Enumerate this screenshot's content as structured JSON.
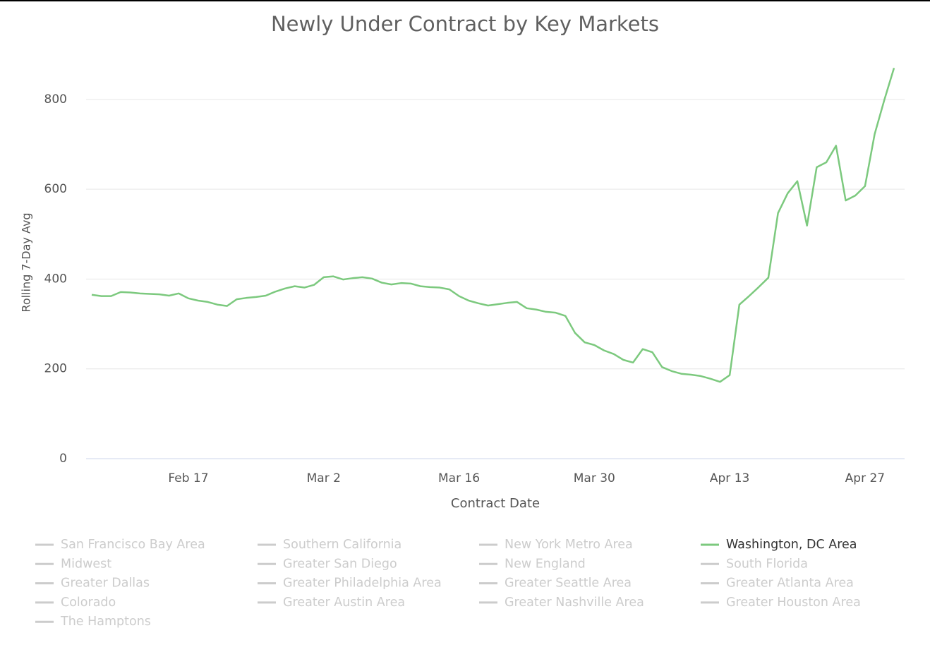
{
  "chart_data": {
    "type": "line",
    "title": "Newly Under Contract by Key Markets",
    "xlabel": "Contract Date",
    "ylabel": "Rolling 7-Day Avg",
    "x": [
      "Feb 7",
      "Feb 8",
      "Feb 9",
      "Feb 10",
      "Feb 11",
      "Feb 12",
      "Feb 13",
      "Feb 14",
      "Feb 15",
      "Feb 16",
      "Feb 17",
      "Feb 18",
      "Feb 19",
      "Feb 20",
      "Feb 21",
      "Feb 22",
      "Feb 23",
      "Feb 24",
      "Feb 25",
      "Feb 26",
      "Feb 27",
      "Feb 28",
      "Feb 29",
      "Mar 1",
      "Mar 2",
      "Mar 3",
      "Mar 4",
      "Mar 5",
      "Mar 6",
      "Mar 7",
      "Mar 8",
      "Mar 9",
      "Mar 10",
      "Mar 11",
      "Mar 12",
      "Mar 13",
      "Mar 14",
      "Mar 15",
      "Mar 16",
      "Mar 17",
      "Mar 18",
      "Mar 19",
      "Mar 20",
      "Mar 21",
      "Mar 22",
      "Mar 23",
      "Mar 24",
      "Mar 25",
      "Mar 26",
      "Mar 27",
      "Mar 28",
      "Mar 29",
      "Mar 30",
      "Mar 31",
      "Apr 1",
      "Apr 2",
      "Apr 3",
      "Apr 4",
      "Apr 5",
      "Apr 6",
      "Apr 7",
      "Apr 8",
      "Apr 9",
      "Apr 10",
      "Apr 11",
      "Apr 12",
      "Apr 13",
      "Apr 14",
      "Apr 15",
      "Apr 16",
      "Apr 17",
      "Apr 18",
      "Apr 19",
      "Apr 20",
      "Apr 21",
      "Apr 22",
      "Apr 23",
      "Apr 24",
      "Apr 25",
      "Apr 26",
      "Apr 27",
      "Apr 28",
      "Apr 29",
      "Apr 30"
    ],
    "xticks": [
      "Feb 17",
      "Mar 2",
      "Mar 16",
      "Mar 30",
      "Apr 13",
      "Apr 27"
    ],
    "ylim": [
      0,
      880
    ],
    "yticks": [
      0,
      200,
      400,
      600,
      800
    ],
    "grid": true,
    "series": [
      {
        "name": "San Francisco Bay Area",
        "color": "#cccccc",
        "visible": false
      },
      {
        "name": "Southern California",
        "color": "#cccccc",
        "visible": false
      },
      {
        "name": "New York Metro Area",
        "color": "#cccccc",
        "visible": false
      },
      {
        "name": "Washington, DC Area",
        "color": "#7cc97e",
        "visible": true,
        "values": [
          365,
          362,
          362,
          371,
          370,
          368,
          367,
          366,
          363,
          368,
          357,
          352,
          349,
          343,
          340,
          355,
          358,
          360,
          363,
          372,
          379,
          384,
          381,
          387,
          404,
          406,
          399,
          402,
          404,
          401,
          392,
          388,
          391,
          390,
          384,
          382,
          381,
          377,
          362,
          352,
          346,
          341,
          344,
          347,
          349,
          335,
          332,
          327,
          325,
          318,
          280,
          259,
          253,
          241,
          233,
          220,
          214,
          244,
          237,
          204,
          195,
          189,
          187,
          184,
          178,
          171,
          186,
          343,
          362,
          382,
          403,
          547,
          591,
          618,
          519,
          649,
          660,
          697,
          575,
          586,
          607,
          723,
          799,
          870
        ]
      },
      {
        "name": "Midwest",
        "color": "#cccccc",
        "visible": false
      },
      {
        "name": "Greater San Diego",
        "color": "#cccccc",
        "visible": false
      },
      {
        "name": "New England",
        "color": "#cccccc",
        "visible": false
      },
      {
        "name": "South Florida",
        "color": "#cccccc",
        "visible": false
      },
      {
        "name": "Greater Dallas",
        "color": "#cccccc",
        "visible": false
      },
      {
        "name": "Greater Philadelphia Area",
        "color": "#cccccc",
        "visible": false
      },
      {
        "name": "Greater Seattle Area",
        "color": "#cccccc",
        "visible": false
      },
      {
        "name": "Greater Atlanta Area",
        "color": "#cccccc",
        "visible": false
      },
      {
        "name": "Colorado",
        "color": "#cccccc",
        "visible": false
      },
      {
        "name": "Greater Austin Area",
        "color": "#cccccc",
        "visible": false
      },
      {
        "name": "Greater Nashville Area",
        "color": "#cccccc",
        "visible": false
      },
      {
        "name": "Greater Houston Area",
        "color": "#cccccc",
        "visible": false
      },
      {
        "name": "The Hamptons",
        "color": "#cccccc",
        "visible": false
      }
    ]
  }
}
